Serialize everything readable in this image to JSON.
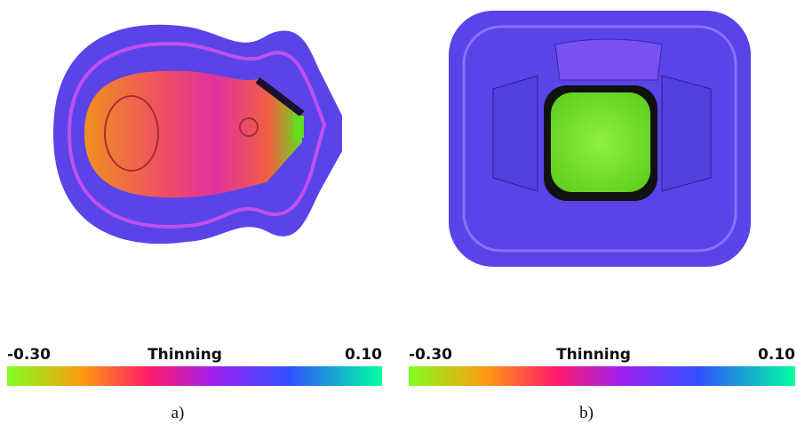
{
  "panels": [
    {
      "colorbar": {
        "min": "-0.30",
        "title": "Thinning",
        "max": "0.10"
      },
      "caption": "a)"
    },
    {
      "colorbar": {
        "min": "-0.30",
        "title": "Thinning",
        "max": "0.10"
      },
      "caption": "b)"
    }
  ]
}
